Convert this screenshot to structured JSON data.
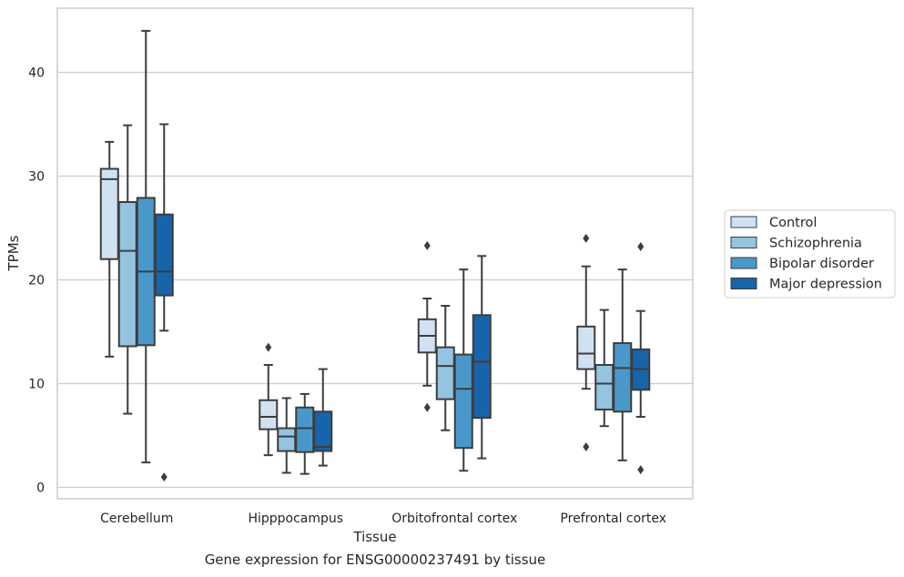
{
  "caption": "Gene expression for ENSG00000237491 by tissue",
  "chart_data": {
    "type": "box",
    "title": "",
    "xlabel": "Tissue",
    "ylabel": "TPMs",
    "ylim": [
      -1,
      46
    ],
    "yticks": [
      0,
      10,
      20,
      30,
      40
    ],
    "grid": "horizontal",
    "legend_position": "right",
    "categories": [
      "Cerebellum",
      "Hipppocampus",
      "Orbitofrontal cortex",
      "Prefrontal cortex"
    ],
    "series": [
      {
        "name": "Control",
        "color": "#d0e1f2",
        "boxes": [
          {
            "whislo": 12.6,
            "q1": 22.0,
            "med": 29.7,
            "q3": 30.7,
            "whishi": 33.3,
            "fliers": []
          },
          {
            "whislo": 3.1,
            "q1": 5.6,
            "med": 6.8,
            "q3": 8.4,
            "whishi": 11.8,
            "fliers": [
              13.5
            ]
          },
          {
            "whislo": 9.8,
            "q1": 13.0,
            "med": 14.6,
            "q3": 16.2,
            "whishi": 18.2,
            "fliers": [
              23.3,
              7.7
            ]
          },
          {
            "whislo": 9.5,
            "q1": 11.4,
            "med": 12.9,
            "q3": 15.5,
            "whishi": 21.3,
            "fliers": [
              24.0,
              3.9
            ]
          }
        ]
      },
      {
        "name": "Schizophrenia",
        "color": "#94c4df",
        "boxes": [
          {
            "whislo": 7.1,
            "q1": 13.6,
            "med": 22.8,
            "q3": 27.5,
            "whishi": 34.9,
            "fliers": []
          },
          {
            "whislo": 1.4,
            "q1": 3.5,
            "med": 4.9,
            "q3": 5.7,
            "whishi": 8.6,
            "fliers": []
          },
          {
            "whislo": 5.5,
            "q1": 8.5,
            "med": 11.7,
            "q3": 13.5,
            "whishi": 17.5,
            "fliers": []
          },
          {
            "whislo": 5.9,
            "q1": 7.5,
            "med": 10.0,
            "q3": 11.8,
            "whishi": 17.1,
            "fliers": []
          }
        ]
      },
      {
        "name": "Bipolar disorder",
        "color": "#4a98c9",
        "boxes": [
          {
            "whislo": 2.4,
            "q1": 13.7,
            "med": 20.8,
            "q3": 27.9,
            "whishi": 44.0,
            "fliers": []
          },
          {
            "whislo": 1.3,
            "q1": 3.4,
            "med": 5.7,
            "q3": 7.7,
            "whishi": 9.0,
            "fliers": []
          },
          {
            "whislo": 1.6,
            "q1": 3.8,
            "med": 9.5,
            "q3": 12.8,
            "whishi": 21.0,
            "fliers": []
          },
          {
            "whislo": 2.6,
            "q1": 7.3,
            "med": 11.5,
            "q3": 13.9,
            "whishi": 21.0,
            "fliers": []
          }
        ]
      },
      {
        "name": "Major depression",
        "color": "#1764ab",
        "boxes": [
          {
            "whislo": 15.1,
            "q1": 18.5,
            "med": 20.8,
            "q3": 26.3,
            "whishi": 35.0,
            "fliers": [
              1.0
            ]
          },
          {
            "whislo": 2.1,
            "q1": 3.5,
            "med": 3.9,
            "q3": 7.3,
            "whishi": 11.4,
            "fliers": []
          },
          {
            "whislo": 2.8,
            "q1": 6.7,
            "med": 12.1,
            "q3": 16.6,
            "whishi": 22.3,
            "fliers": []
          },
          {
            "whislo": 6.8,
            "q1": 9.4,
            "med": 11.4,
            "q3": 13.3,
            "whishi": 17.0,
            "fliers": [
              23.2,
              1.7
            ]
          }
        ]
      }
    ]
  }
}
